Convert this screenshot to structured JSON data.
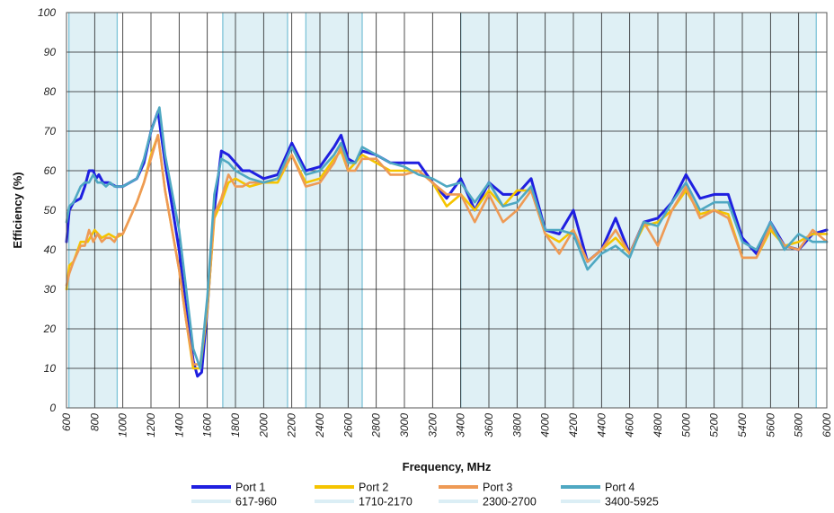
{
  "chart_data": {
    "type": "line",
    "title": "",
    "xlabel": "Frequency, MHz",
    "ylabel": "Efficiency (%)",
    "xlim": [
      600,
      6000
    ],
    "ylim": [
      0,
      100
    ],
    "x_ticks": [
      600,
      800,
      1000,
      1200,
      1400,
      1600,
      1800,
      2000,
      2200,
      2400,
      2600,
      2800,
      3000,
      3200,
      3400,
      3600,
      3800,
      4000,
      4200,
      4400,
      4600,
      4800,
      5000,
      5200,
      5400,
      5600,
      5800,
      6000
    ],
    "y_ticks": [
      0,
      10,
      20,
      30,
      40,
      50,
      60,
      70,
      80,
      90,
      100
    ],
    "grid": true,
    "legend_position": "bottom",
    "bands": [
      {
        "name": "617-960",
        "range": [
          617,
          960
        ],
        "color": "#dff0f5"
      },
      {
        "name": "1710-2170",
        "range": [
          1710,
          2170
        ],
        "color": "#dff0f5"
      },
      {
        "name": "2300-2700",
        "range": [
          2300,
          2700
        ],
        "color": "#dff0f5"
      },
      {
        "name": "3400-5925",
        "range": [
          3400,
          5925
        ],
        "color": "#dff0f5"
      }
    ],
    "series": [
      {
        "name": "Port 1",
        "color": "#1f1fe0",
        "x": [
          600,
          620,
          650,
          700,
          730,
          760,
          790,
          810,
          830,
          860,
          900,
          950,
          1000,
          1100,
          1150,
          1200,
          1250,
          1300,
          1400,
          1450,
          1500,
          1530,
          1560,
          1600,
          1650,
          1700,
          1750,
          1800,
          1850,
          1900,
          2000,
          2100,
          2200,
          2300,
          2400,
          2500,
          2550,
          2600,
          2650,
          2700,
          2800,
          2900,
          3000,
          3100,
          3200,
          3300,
          3400,
          3500,
          3600,
          3700,
          3800,
          3900,
          4000,
          4100,
          4200,
          4300,
          4400,
          4500,
          4600,
          4700,
          4800,
          4900,
          5000,
          5100,
          5200,
          5300,
          5400,
          5500,
          5600,
          5700,
          5800,
          5900,
          6000
        ],
        "values": [
          42,
          50,
          52,
          53,
          56,
          60,
          60,
          58,
          59,
          57,
          57,
          56,
          56,
          58,
          62,
          70,
          75,
          62,
          40,
          25,
          12,
          8,
          9,
          25,
          50,
          65,
          64,
          62,
          60,
          60,
          58,
          59,
          67,
          60,
          61,
          66,
          69,
          63,
          62,
          65,
          64,
          62,
          62,
          62,
          57,
          53,
          58,
          50,
          57,
          54,
          54,
          58,
          45,
          44,
          50,
          37,
          40,
          48,
          39,
          47,
          48,
          52,
          59,
          53,
          54,
          54,
          43,
          39,
          47,
          41,
          40,
          44,
          45
        ]
      },
      {
        "name": "Port 2",
        "color": "#f5c400",
        "x": [
          600,
          620,
          650,
          700,
          750,
          800,
          850,
          900,
          950,
          1000,
          1100,
          1150,
          1200,
          1250,
          1300,
          1400,
          1450,
          1500,
          1550,
          1600,
          1650,
          1700,
          1750,
          1800,
          1850,
          1900,
          2000,
          2100,
          2200,
          2300,
          2400,
          2500,
          2550,
          2600,
          2650,
          2700,
          2800,
          2900,
          3000,
          3100,
          3200,
          3300,
          3400,
          3500,
          3600,
          3700,
          3800,
          3900,
          4000,
          4100,
          4200,
          4300,
          4400,
          4500,
          4600,
          4700,
          4800,
          4900,
          5000,
          5100,
          5200,
          5300,
          5400,
          5500,
          5600,
          5700,
          5800,
          5900,
          6000
        ],
        "values": [
          30,
          36,
          37,
          42,
          42,
          45,
          43,
          44,
          43,
          44,
          52,
          57,
          64,
          69,
          55,
          35,
          22,
          10,
          10,
          25,
          48,
          52,
          57,
          58,
          57,
          56,
          57,
          57,
          64,
          57,
          58,
          63,
          65,
          60,
          62,
          64,
          62,
          60,
          60,
          60,
          57,
          51,
          54,
          50,
          55,
          51,
          55,
          55,
          44,
          42,
          45,
          37,
          40,
          43,
          39,
          46,
          47,
          50,
          55,
          49,
          50,
          49,
          38,
          38,
          45,
          41,
          42,
          44,
          44
        ]
      },
      {
        "name": "Port 3",
        "color": "#ee9a55",
        "x": [
          600,
          620,
          650,
          700,
          730,
          760,
          790,
          820,
          850,
          880,
          910,
          940,
          970,
          1000,
          1100,
          1150,
          1200,
          1250,
          1300,
          1400,
          1450,
          1500,
          1550,
          1600,
          1650,
          1700,
          1750,
          1800,
          1850,
          1900,
          2000,
          2100,
          2200,
          2300,
          2400,
          2500,
          2550,
          2600,
          2650,
          2700,
          2800,
          2900,
          3000,
          3100,
          3200,
          3300,
          3400,
          3500,
          3600,
          3700,
          3800,
          3900,
          4000,
          4100,
          4200,
          4300,
          4400,
          4500,
          4600,
          4700,
          4800,
          4900,
          5000,
          5100,
          5200,
          5300,
          5400,
          5500,
          5600,
          5700,
          5800,
          5900,
          6000
        ],
        "values": [
          31,
          34,
          37,
          41,
          41,
          45,
          42,
          44,
          42,
          43,
          43,
          42,
          44,
          44,
          52,
          57,
          63,
          69,
          55,
          35,
          22,
          11,
          11,
          26,
          49,
          53,
          59,
          56,
          56,
          57,
          57,
          58,
          64,
          56,
          57,
          62,
          66,
          60,
          60,
          63,
          63,
          59,
          59,
          60,
          57,
          54,
          54,
          47,
          54,
          47,
          50,
          55,
          44,
          39,
          45,
          37,
          40,
          45,
          39,
          47,
          41,
          50,
          56,
          48,
          50,
          48,
          38,
          38,
          46,
          41,
          40,
          45,
          42
        ]
      },
      {
        "name": "Port 4",
        "color": "#4fa8c2",
        "x": [
          600,
          620,
          650,
          700,
          730,
          760,
          790,
          820,
          850,
          880,
          910,
          940,
          970,
          1000,
          1100,
          1150,
          1200,
          1260,
          1300,
          1400,
          1450,
          1500,
          1550,
          1600,
          1650,
          1700,
          1750,
          1800,
          1850,
          1900,
          2000,
          2100,
          2200,
          2300,
          2400,
          2500,
          2550,
          2600,
          2650,
          2700,
          2800,
          2900,
          3000,
          3100,
          3200,
          3300,
          3400,
          3500,
          3600,
          3700,
          3800,
          3900,
          4000,
          4100,
          4200,
          4300,
          4400,
          4500,
          4600,
          4700,
          4800,
          4900,
          5000,
          5100,
          5200,
          5300,
          5400,
          5500,
          5600,
          5700,
          5800,
          5900,
          6000
        ],
        "values": [
          47,
          51,
          52,
          56,
          57,
          57,
          59,
          57,
          57,
          56,
          57,
          56,
          56,
          56,
          58,
          63,
          70,
          76,
          64,
          45,
          30,
          15,
          10,
          28,
          54,
          63,
          62,
          60,
          59,
          58,
          57,
          58,
          66,
          59,
          60,
          64,
          67,
          62,
          62,
          66,
          64,
          62,
          61,
          59,
          58,
          56,
          57,
          52,
          57,
          51,
          52,
          56,
          45,
          45,
          44,
          35,
          39,
          41,
          38,
          47,
          46,
          52,
          57,
          50,
          52,
          52,
          42,
          40,
          47,
          40,
          44,
          42,
          42
        ]
      }
    ]
  }
}
